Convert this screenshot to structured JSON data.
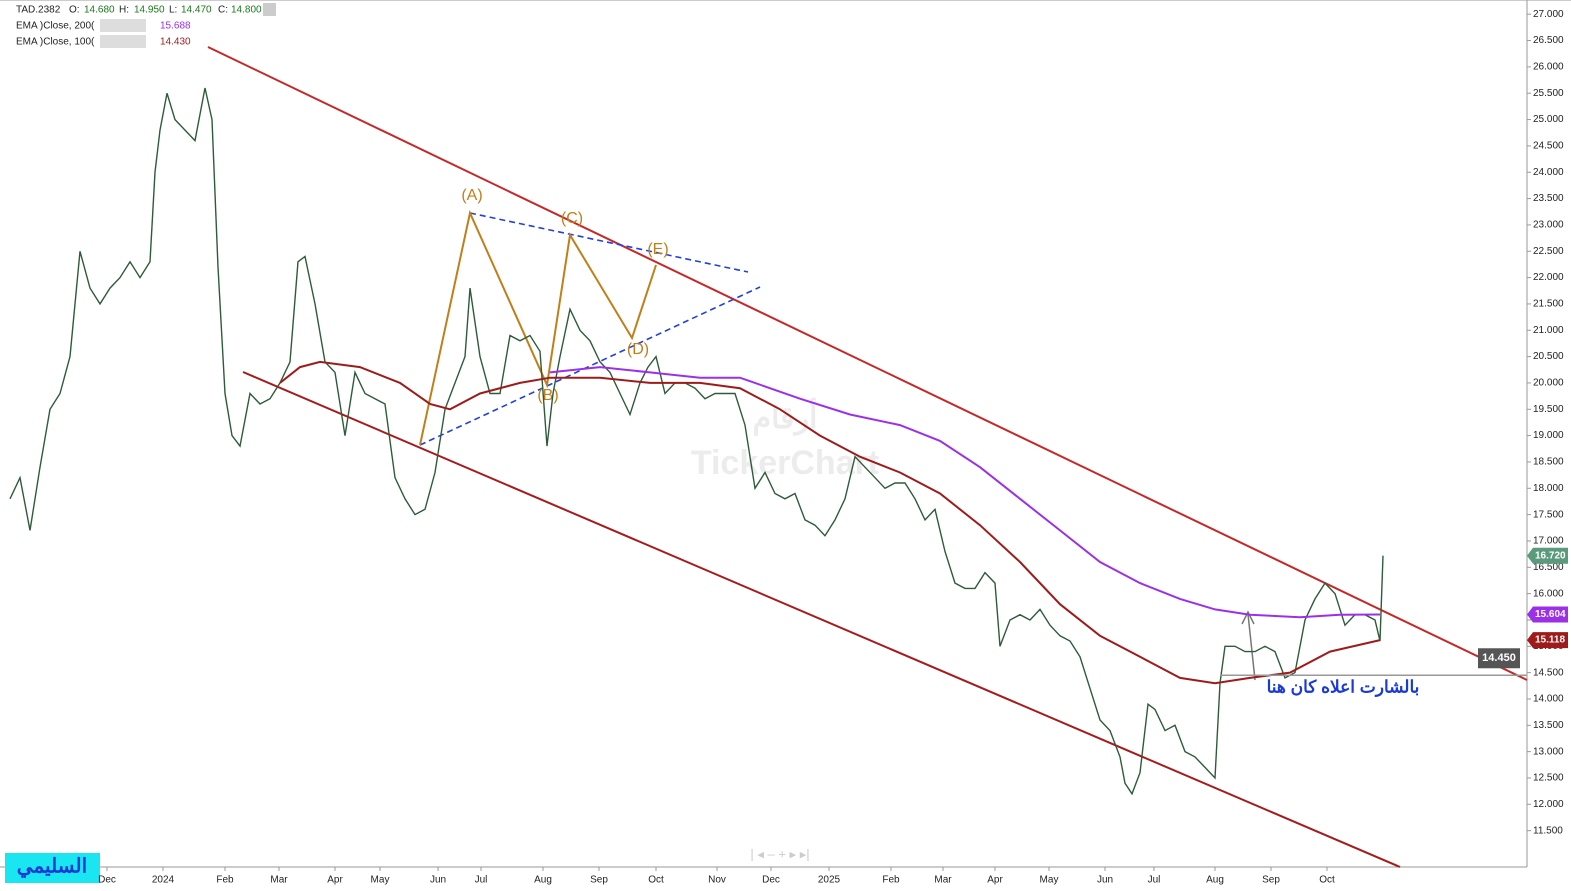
{
  "chart_data": {
    "type": "line",
    "ohlc_header": [
      {
        "label": "O:",
        "value": "14.680"
      },
      {
        "label": "H:",
        "value": "14.950"
      },
      {
        "label": "L:",
        "value": "14.470"
      },
      {
        "label": "C:",
        "value": "14.800"
      }
    ],
    "legend_values": [
      "15.688",
      "14.430"
    ],
    "series": [
      {
        "name": "TAD.2382",
        "color": "#2e5b3a",
        "x": [
          0,
          1,
          2,
          3,
          4,
          5,
          6,
          7,
          8,
          9,
          10,
          11,
          12,
          13,
          14,
          14.5,
          15,
          15.7,
          16.5,
          17.5,
          18.5,
          19.5,
          20.2,
          20.8,
          21.5,
          22.2,
          23,
          24,
          25,
          26,
          27,
          28,
          28.8,
          29.5,
          30.5,
          31.5,
          32.5,
          33.5,
          34.5,
          35.5,
          36.5,
          37.5,
          38.5,
          39.5,
          40.5,
          41.5,
          42.5,
          43.5,
          44.5,
          45.5,
          46,
          47,
          48,
          49,
          50,
          51,
          52,
          53,
          53.7,
          54.3,
          55,
          56,
          57,
          58,
          59,
          60,
          61,
          62,
          63,
          63.8,
          64.6,
          65.5,
          66.5,
          67.5,
          68.5,
          69.5,
          70.5,
          71.5,
          72.5,
          73.5,
          74.5,
          75.5,
          76.5,
          77.5,
          78.5,
          79.5,
          80.5,
          81.5,
          82.5,
          83.5,
          84.5,
          85.5,
          86.5,
          87.5,
          88.5,
          89.5,
          90.5,
          91.5,
          92.5,
          93.5,
          94.5,
          95.5,
          96.5,
          97.5,
          98.5,
          99,
          100,
          101,
          102,
          103,
          104,
          105,
          106,
          107,
          108,
          109,
          110,
          111,
          111.5,
          112.2,
          113,
          113.8,
          114.5,
          115.5,
          116.5,
          117.5,
          118.5,
          119.5,
          120.5,
          121,
          121.5,
          122.5,
          123.5,
          124.5,
          125.5,
          126.5,
          127.5,
          128.5,
          129.5,
          130.5,
          131.5,
          132.5,
          133.5,
          134.5,
          135.5,
          136.5,
          137,
          137.3
        ],
        "values": [
          17.8,
          18.2,
          17.2,
          18.4,
          19.5,
          19.8,
          20.5,
          22.5,
          21.8,
          21.5,
          21.8,
          22.0,
          22.3,
          22.0,
          22.3,
          24.0,
          24.8,
          25.5,
          25.0,
          24.8,
          24.6,
          25.6,
          25.0,
          22.2,
          19.8,
          19.0,
          18.8,
          19.8,
          19.6,
          19.7,
          20.0,
          20.4,
          22.3,
          22.4,
          21.5,
          20.4,
          20.2,
          19.0,
          20.2,
          19.8,
          19.7,
          19.6,
          18.2,
          17.8,
          17.5,
          17.6,
          18.3,
          19.5,
          20.0,
          20.5,
          21.8,
          20.5,
          19.8,
          19.8,
          20.9,
          20.8,
          20.9,
          20.6,
          18.8,
          19.8,
          20.5,
          21.4,
          21.0,
          20.8,
          20.4,
          20.2,
          19.8,
          19.4,
          20.0,
          20.3,
          20.5,
          19.8,
          20.0,
          20.0,
          19.9,
          19.7,
          19.8,
          19.8,
          19.8,
          19.2,
          18.0,
          18.3,
          17.9,
          17.8,
          17.9,
          17.4,
          17.3,
          17.1,
          17.4,
          17.8,
          18.6,
          18.4,
          18.2,
          18.0,
          18.1,
          18.1,
          17.8,
          17.4,
          17.6,
          16.8,
          16.2,
          16.1,
          16.1,
          16.4,
          16.2,
          15.0,
          15.5,
          15.6,
          15.5,
          15.7,
          15.4,
          15.2,
          15.1,
          14.8,
          14.2,
          13.6,
          13.4,
          12.9,
          12.4,
          12.2,
          12.6,
          13.9,
          13.8,
          13.4,
          13.5,
          13.0,
          12.9,
          12.7,
          12.5,
          14.3,
          15.0,
          15.0,
          14.9,
          14.9,
          15.0,
          14.9,
          14.4,
          14.5,
          15.5,
          15.9,
          16.2,
          16.0,
          15.4,
          15.6,
          15.6,
          15.5,
          15.1,
          16.72
        ]
      },
      {
        "name": "EMA )Close, 200(",
        "color": "#9b30e8",
        "x": [
          54,
          59,
          64,
          69,
          73,
          79,
          84,
          89,
          93,
          97,
          101,
          105,
          109,
          113,
          117,
          120.5,
          124,
          129,
          133,
          137
        ],
        "values": [
          20.2,
          20.3,
          20.2,
          20.1,
          20.1,
          19.7,
          19.4,
          19.2,
          18.9,
          18.4,
          17.8,
          17.2,
          16.6,
          16.2,
          15.9,
          15.7,
          15.6,
          15.55,
          15.6,
          15.604
        ]
      },
      {
        "name": "EMA )Close, 100(",
        "color": "#9e1b1b",
        "x": [
          27,
          29,
          31,
          35,
          39,
          42,
          44,
          47,
          51,
          54,
          59,
          64,
          69,
          73,
          77,
          81,
          85,
          89,
          93,
          97,
          101,
          105,
          109,
          113,
          117,
          120.5,
          124,
          128,
          132,
          137
        ],
        "values": [
          20.0,
          20.3,
          20.4,
          20.3,
          20.0,
          19.6,
          19.5,
          19.8,
          20.0,
          20.1,
          20.1,
          20.0,
          20.0,
          19.9,
          19.5,
          19.0,
          18.6,
          18.3,
          17.9,
          17.3,
          16.6,
          15.8,
          15.2,
          14.8,
          14.4,
          14.3,
          14.4,
          14.5,
          14.9,
          15.118
        ]
      }
    ],
    "xlim": [
      -0.2,
      151.7
    ],
    "xticks": [
      {
        "value": 9.7,
        "label": "Dec"
      },
      {
        "value": 15.3,
        "label": "2024"
      },
      {
        "value": 21.5,
        "label": "Feb"
      },
      {
        "value": 26.9,
        "label": "Mar"
      },
      {
        "value": 32.5,
        "label": "Apr"
      },
      {
        "value": 37,
        "label": "May"
      },
      {
        "value": 42.8,
        "label": "Jun"
      },
      {
        "value": 47.1,
        "label": "Jul"
      },
      {
        "value": 53.3,
        "label": "Aug"
      },
      {
        "value": 58.9,
        "label": "Sep"
      },
      {
        "value": 64.6,
        "label": "Oct"
      },
      {
        "value": 70.7,
        "label": "Nov"
      },
      {
        "value": 76.1,
        "label": "Dec"
      },
      {
        "value": 81.9,
        "label": "2025"
      },
      {
        "value": 88.1,
        "label": "Feb"
      },
      {
        "value": 93.3,
        "label": "Mar"
      },
      {
        "value": 98.5,
        "label": "Apr"
      },
      {
        "value": 103.9,
        "label": "May"
      },
      {
        "value": 109.5,
        "label": "Jun"
      },
      {
        "value": 114.4,
        "label": "Jul"
      },
      {
        "value": 120.5,
        "label": "Aug"
      },
      {
        "value": 126.1,
        "label": "Sep"
      },
      {
        "value": 131.7,
        "label": "Oct"
      }
    ],
    "ylim": [
      10.81,
      27.27
    ],
    "yticks": [
      {
        "value": 27,
        "label": "27.000"
      },
      {
        "value": 26.5,
        "label": "26.500"
      },
      {
        "value": 26,
        "label": "26.000"
      },
      {
        "value": 25.5,
        "label": "25.500"
      },
      {
        "value": 25,
        "label": "25.000"
      },
      {
        "value": 24.5,
        "label": "24.500"
      },
      {
        "value": 24,
        "label": "24.000"
      },
      {
        "value": 23.5,
        "label": "23.500"
      },
      {
        "value": 23,
        "label": "23.000"
      },
      {
        "value": 22.5,
        "label": "22.500"
      },
      {
        "value": 22,
        "label": "22.000"
      },
      {
        "value": 21.5,
        "label": "21.500"
      },
      {
        "value": 21,
        "label": "21.000"
      },
      {
        "value": 20.5,
        "label": "20.500"
      },
      {
        "value": 20,
        "label": "20.000"
      },
      {
        "value": 19.5,
        "label": "19.500"
      },
      {
        "value": 19,
        "label": "19.000"
      },
      {
        "value": 18.5,
        "label": "18.500"
      },
      {
        "value": 18,
        "label": "18.000"
      },
      {
        "value": 17.5,
        "label": "17.500"
      },
      {
        "value": 17,
        "label": "17.000"
      },
      {
        "value": 16.5,
        "label": "16.500"
      },
      {
        "value": 16,
        "label": "16.000"
      },
      {
        "value": 15.5,
        "label": "15.500"
      },
      {
        "value": 15,
        "label": "15.000"
      },
      {
        "value": 14.5,
        "label": "14.500"
      },
      {
        "value": 14,
        "label": "14.000"
      },
      {
        "value": 13.5,
        "label": "13.500"
      },
      {
        "value": 13,
        "label": "13.000"
      },
      {
        "value": 12.5,
        "label": "12.500"
      },
      {
        "value": 12,
        "label": "12.000"
      },
      {
        "value": 11.5,
        "label": "11.500"
      }
    ],
    "price_labels": [
      {
        "value": 16.72,
        "label": "16.720",
        "color": "#5b9a7c"
      },
      {
        "value": 15.604,
        "label": "15.604",
        "color": "#9b30e8"
      },
      {
        "value": 15.118,
        "label": "15.118",
        "color": "#9e1b1b"
      }
    ],
    "level_line": {
      "value": 14.45,
      "label": "14.450",
      "color": "#555555"
    },
    "wave_labels": [
      "(A)",
      "(B)",
      "(C)",
      "(D)",
      "(E)"
    ],
    "annotation": "بالشارت اعلاه كان هنا",
    "watermark": "TickerChart",
    "watermark_ar": "أرقام",
    "logo": "السليمي"
  }
}
